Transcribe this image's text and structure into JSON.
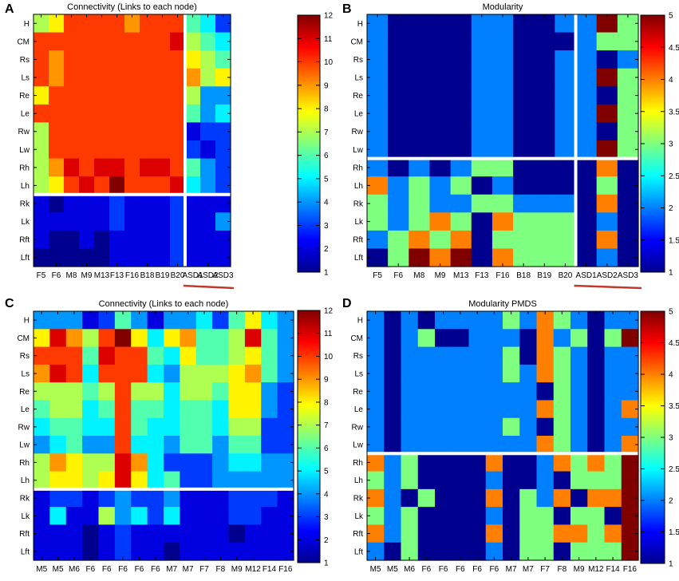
{
  "colormap": [
    "#00008f",
    "#0000ff",
    "#007fff",
    "#00ffff",
    "#7fff7f",
    "#ffff00",
    "#ff7f00",
    "#ff0000",
    "#800000"
  ],
  "chart_data": [
    {
      "type": "heatmap",
      "panel_letter": "A",
      "title": "Connectivity (Links to each node)",
      "rows": [
        "H",
        "CM",
        "Rs",
        "Ls",
        "Re",
        "Le",
        "Rw",
        "Lw",
        "Rh",
        "Lh",
        "Rk",
        "Lk",
        "Rft",
        "Lft"
      ],
      "columns": [
        "F5",
        "F6",
        "M8",
        "M9",
        "M13",
        "F13",
        "F16",
        "B18",
        "B19",
        "B20",
        "ASD1",
        "ASD2",
        "ASD3"
      ],
      "row_separator_after": 9,
      "column_separator_after": 9,
      "group_underline_columns": [
        10,
        12
      ],
      "colorbar": {
        "min": 1,
        "max": 12,
        "ticks": [
          "1",
          "2",
          "3",
          "4",
          "5",
          "6",
          "7",
          "8",
          "9",
          "10",
          "11",
          "12"
        ]
      },
      "values": [
        [
          7,
          8,
          10,
          10,
          10,
          10,
          9,
          10,
          10,
          10,
          6,
          5,
          3
        ],
        [
          10,
          10,
          10,
          10,
          10,
          10,
          10,
          10,
          10,
          11,
          7,
          6,
          5
        ],
        [
          10,
          9,
          10,
          10,
          10,
          10,
          10,
          10,
          10,
          10,
          8,
          7,
          6
        ],
        [
          10,
          9,
          10,
          10,
          10,
          10,
          10,
          10,
          10,
          10,
          9,
          7,
          8
        ],
        [
          8,
          10,
          10,
          10,
          10,
          10,
          10,
          10,
          10,
          10,
          7,
          4,
          4
        ],
        [
          10,
          10,
          10,
          10,
          10,
          10,
          10,
          10,
          10,
          10,
          6,
          4,
          5
        ],
        [
          7,
          10,
          10,
          10,
          10,
          10,
          10,
          10,
          10,
          10,
          2,
          3,
          3
        ],
        [
          7,
          10,
          10,
          10,
          10,
          10,
          10,
          10,
          10,
          10,
          3,
          2,
          3
        ],
        [
          7,
          9,
          11,
          10,
          11,
          11,
          10,
          11,
          11,
          10,
          6,
          4,
          3
        ],
        [
          7,
          8,
          10,
          11,
          10,
          12,
          10,
          10,
          10,
          11,
          5,
          4,
          3
        ],
        [
          2,
          1,
          2,
          2,
          2,
          3,
          2,
          2,
          2,
          3,
          2,
          2,
          2
        ],
        [
          2,
          2,
          2,
          2,
          2,
          3,
          2,
          2,
          2,
          3,
          2,
          2,
          4
        ],
        [
          2,
          1,
          1,
          2,
          1,
          2,
          2,
          2,
          2,
          3,
          2,
          2,
          2
        ],
        [
          1,
          1,
          1,
          1,
          1,
          2,
          2,
          2,
          2,
          3,
          2,
          2,
          2
        ]
      ]
    },
    {
      "type": "heatmap",
      "panel_letter": "B",
      "title": "Modularity",
      "rows": [
        "H",
        "CM",
        "Rs",
        "Ls",
        "Re",
        "Le",
        "Rw",
        "Lw",
        "Rh",
        "Lh",
        "Rk",
        "Lk",
        "Rft",
        "Lft"
      ],
      "columns": [
        "F5",
        "F6",
        "M8",
        "M9",
        "M13",
        "F13",
        "F16",
        "B18",
        "B19",
        "B20",
        "ASD1",
        "ASD2",
        "ASD3"
      ],
      "row_separator_after": 7,
      "column_separator_after": 9,
      "group_underline_columns": [
        10,
        12
      ],
      "colorbar": {
        "min": 1,
        "max": 5,
        "ticks": [
          "1",
          "1.5",
          "2",
          "2.5",
          "3",
          "3.5",
          "4",
          "4.5",
          "5"
        ]
      },
      "values": [
        [
          2,
          1,
          1,
          1,
          1,
          2,
          2,
          1,
          1,
          2,
          2,
          5,
          3
        ],
        [
          2,
          1,
          1,
          1,
          1,
          2,
          2,
          1,
          1,
          1,
          2,
          3,
          3
        ],
        [
          2,
          1,
          1,
          1,
          1,
          2,
          2,
          1,
          1,
          2,
          2,
          1,
          2
        ],
        [
          2,
          1,
          1,
          1,
          1,
          2,
          2,
          1,
          1,
          2,
          2,
          5,
          3
        ],
        [
          2,
          1,
          1,
          1,
          1,
          2,
          2,
          1,
          1,
          2,
          2,
          1,
          3
        ],
        [
          2,
          1,
          1,
          1,
          1,
          2,
          2,
          1,
          1,
          2,
          2,
          5,
          3
        ],
        [
          2,
          1,
          1,
          1,
          1,
          2,
          2,
          1,
          1,
          2,
          2,
          1,
          3
        ],
        [
          2,
          1,
          1,
          1,
          1,
          2,
          2,
          1,
          1,
          2,
          2,
          5,
          3
        ],
        [
          2,
          1,
          2,
          1,
          2,
          3,
          3,
          1,
          1,
          1,
          1,
          4,
          1
        ],
        [
          4,
          2,
          3,
          2,
          3,
          1,
          2,
          1,
          1,
          1,
          1,
          3,
          1
        ],
        [
          3,
          2,
          3,
          2,
          2,
          3,
          3,
          2,
          2,
          2,
          1,
          4,
          1
        ],
        [
          3,
          2,
          3,
          4,
          3,
          1,
          4,
          3,
          3,
          3,
          1,
          2,
          1
        ],
        [
          2,
          3,
          4,
          3,
          4,
          1,
          3,
          3,
          3,
          3,
          1,
          4,
          1
        ],
        [
          1,
          3,
          5,
          4,
          5,
          1,
          4,
          3,
          3,
          3,
          1,
          2,
          1
        ]
      ]
    },
    {
      "type": "heatmap",
      "panel_letter": "C",
      "title": "Connectivity (Links to each node)",
      "rows": [
        "H",
        "CM",
        "Rs",
        "Ls",
        "Re",
        "Le",
        "Rw",
        "Lw",
        "Rh",
        "Lh",
        "Rk",
        "Lk",
        "Rft",
        "Lft"
      ],
      "columns": [
        "M5",
        "M5",
        "M6",
        "F6",
        "F6",
        "F6",
        "F6",
        "F6",
        "M7",
        "M7",
        "F7",
        "F8",
        "M9",
        "M12",
        "F14",
        "F16"
      ],
      "row_separator_after": 9,
      "colorbar": {
        "min": 1,
        "max": 12,
        "ticks": [
          "1",
          "2",
          "3",
          "4",
          "5",
          "6",
          "7",
          "8",
          "9",
          "10",
          "11",
          "12"
        ]
      },
      "values": [
        [
          4,
          4,
          4,
          2,
          3,
          6,
          4,
          2,
          4,
          4,
          5,
          3,
          6,
          8,
          5,
          4
        ],
        [
          8,
          11,
          9,
          7,
          10,
          12,
          8,
          5,
          8,
          9,
          6,
          6,
          7,
          11,
          6,
          4
        ],
        [
          10,
          10,
          10,
          6,
          11,
          10,
          10,
          6,
          5,
          8,
          6,
          6,
          7,
          8,
          6,
          4
        ],
        [
          9,
          11,
          10,
          5,
          10,
          10,
          10,
          5,
          4,
          7,
          7,
          7,
          8,
          9,
          6,
          4
        ],
        [
          7,
          7,
          7,
          6,
          7,
          10,
          7,
          7,
          5,
          7,
          7,
          6,
          8,
          8,
          4,
          3
        ],
        [
          6,
          7,
          7,
          5,
          6,
          10,
          6,
          6,
          5,
          6,
          6,
          5,
          8,
          8,
          4,
          3
        ],
        [
          5,
          6,
          6,
          5,
          5,
          10,
          6,
          5,
          5,
          6,
          6,
          5,
          7,
          7,
          3,
          3
        ],
        [
          4,
          5,
          6,
          4,
          4,
          10,
          5,
          5,
          4,
          6,
          6,
          4,
          6,
          6,
          3,
          3
        ],
        [
          7,
          9,
          8,
          7,
          7,
          11,
          9,
          5,
          3,
          3,
          3,
          4,
          5,
          5,
          4,
          4
        ],
        [
          7,
          8,
          8,
          7,
          8,
          11,
          8,
          5,
          6,
          3,
          3,
          4,
          4,
          4,
          4,
          4
        ],
        [
          2,
          3,
          3,
          2,
          3,
          4,
          3,
          3,
          4,
          2,
          2,
          2,
          3,
          3,
          3,
          2
        ],
        [
          2,
          5,
          2,
          2,
          7,
          4,
          5,
          3,
          5,
          2,
          2,
          2,
          3,
          3,
          2,
          2
        ],
        [
          2,
          2,
          2,
          1,
          2,
          3,
          2,
          2,
          2,
          2,
          2,
          2,
          1,
          2,
          2,
          2
        ],
        [
          2,
          2,
          2,
          1,
          2,
          3,
          2,
          2,
          1,
          2,
          2,
          2,
          2,
          2,
          2,
          2
        ]
      ]
    },
    {
      "type": "heatmap",
      "panel_letter": "D",
      "title": "Modularity PMDS",
      "rows": [
        "H",
        "CM",
        "Rs",
        "Ls",
        "Re",
        "Le",
        "Rw",
        "Lw",
        "Rh",
        "Lh",
        "Rk",
        "Lk",
        "Rft",
        "Lft"
      ],
      "columns": [
        "M5",
        "M5",
        "M6",
        "F6",
        "F6",
        "F6",
        "F6",
        "F6",
        "M7",
        "M7",
        "F7",
        "F8",
        "M9",
        "M12",
        "F14",
        "F16"
      ],
      "row_separator_after": 7,
      "colorbar": {
        "min": 1,
        "max": 5,
        "ticks": [
          "1",
          "1.5",
          "2",
          "2.5",
          "3",
          "3.5",
          "4",
          "4.5",
          "5"
        ]
      },
      "values": [
        [
          2,
          1,
          2,
          1,
          2,
          2,
          2,
          2,
          3,
          2,
          4,
          3,
          2,
          1,
          2,
          2
        ],
        [
          2,
          1,
          2,
          3,
          1,
          1,
          2,
          2,
          2,
          1,
          4,
          2,
          3,
          1,
          3,
          5
        ],
        [
          2,
          1,
          2,
          2,
          2,
          2,
          2,
          2,
          3,
          1,
          4,
          3,
          2,
          1,
          2,
          2
        ],
        [
          2,
          1,
          2,
          2,
          2,
          2,
          2,
          2,
          3,
          2,
          4,
          3,
          2,
          1,
          2,
          2
        ],
        [
          2,
          1,
          2,
          2,
          2,
          2,
          2,
          2,
          2,
          2,
          1,
          3,
          2,
          1,
          2,
          2
        ],
        [
          2,
          1,
          2,
          2,
          2,
          2,
          2,
          2,
          2,
          2,
          4,
          3,
          2,
          1,
          2,
          4
        ],
        [
          2,
          1,
          2,
          2,
          2,
          2,
          2,
          2,
          3,
          2,
          1,
          3,
          2,
          1,
          2,
          2
        ],
        [
          2,
          1,
          2,
          2,
          2,
          2,
          2,
          2,
          2,
          2,
          4,
          3,
          2,
          1,
          2,
          4
        ],
        [
          4,
          2,
          3,
          1,
          1,
          1,
          1,
          4,
          1,
          1,
          2,
          4,
          3,
          4,
          3,
          5
        ],
        [
          3,
          2,
          3,
          1,
          1,
          1,
          1,
          2,
          1,
          1,
          2,
          1,
          3,
          3,
          3,
          5
        ],
        [
          4,
          2,
          1,
          3,
          1,
          1,
          1,
          4,
          1,
          3,
          2,
          4,
          1,
          4,
          4,
          5
        ],
        [
          3,
          2,
          3,
          1,
          1,
          1,
          1,
          2,
          1,
          3,
          3,
          1,
          3,
          3,
          1,
          5
        ],
        [
          4,
          2,
          3,
          1,
          1,
          1,
          1,
          4,
          1,
          3,
          3,
          4,
          4,
          3,
          4,
          5
        ],
        [
          2,
          1,
          3,
          1,
          1,
          1,
          1,
          2,
          1,
          3,
          3,
          1,
          3,
          3,
          3,
          5
        ]
      ]
    }
  ]
}
